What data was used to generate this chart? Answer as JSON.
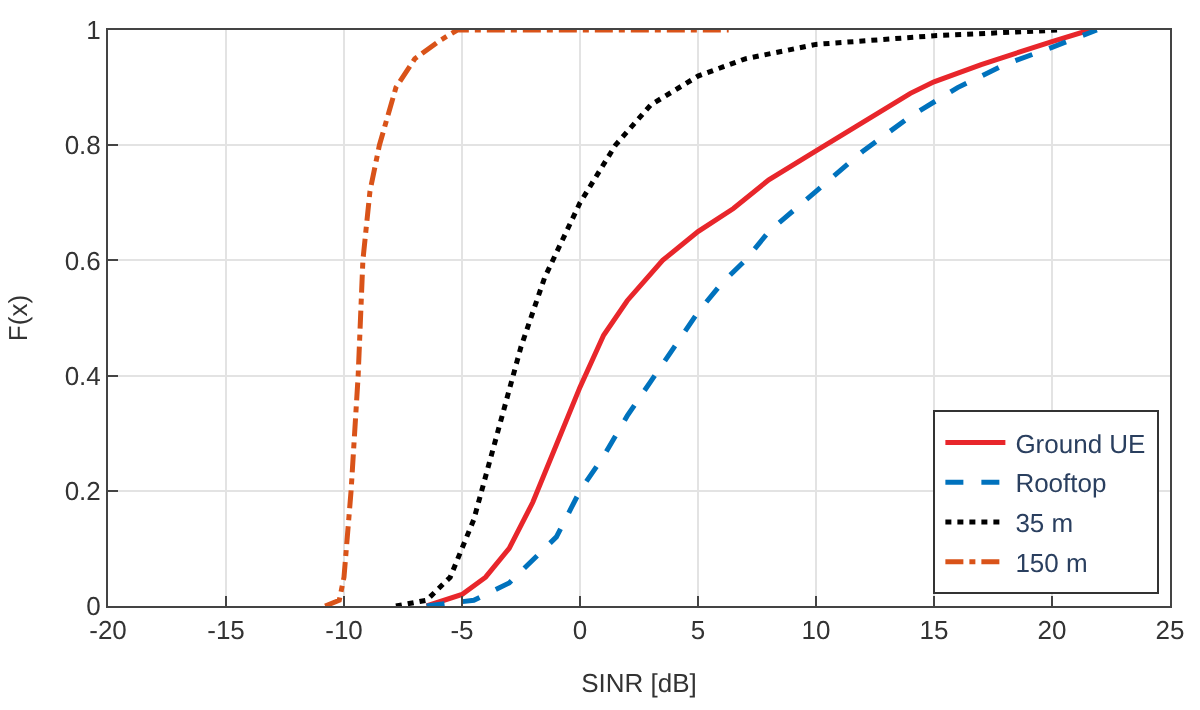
{
  "chart_data": {
    "type": "line",
    "xlabel": "SINR [dB]",
    "ylabel": "F(x)",
    "xlim": [
      -20,
      25
    ],
    "xticks": [
      -20,
      -15,
      -10,
      -5,
      0,
      5,
      10,
      15,
      20,
      25
    ],
    "ylim": [
      0,
      1
    ],
    "yticks": [
      0,
      0.2,
      0.4,
      0.6,
      0.8,
      1
    ],
    "grid": true,
    "legend": "bottom right",
    "series": [
      {
        "name": "Ground UE",
        "color": "#e8262b",
        "line_style": "solid",
        "x": [
          -6.5,
          -5,
          -4,
          -3,
          -2,
          -1,
          0,
          1,
          2,
          3.5,
          5,
          6.5,
          8,
          10,
          12,
          14,
          15,
          17,
          20,
          21.6
        ],
        "values": [
          0,
          0.02,
          0.05,
          0.1,
          0.18,
          0.28,
          0.38,
          0.47,
          0.53,
          0.6,
          0.65,
          0.69,
          0.74,
          0.79,
          0.84,
          0.89,
          0.91,
          0.94,
          0.98,
          1
        ]
      },
      {
        "name": "Rooftop",
        "color": "#0072bd",
        "line_style": "dashed",
        "x": [
          -6.5,
          -4.5,
          -3,
          -1,
          0,
          1,
          2,
          3,
          4,
          5,
          6,
          7,
          8,
          10,
          12,
          14,
          16,
          18,
          20,
          21.9
        ],
        "values": [
          0,
          0.01,
          0.04,
          0.12,
          0.2,
          0.26,
          0.33,
          0.39,
          0.45,
          0.51,
          0.56,
          0.6,
          0.65,
          0.72,
          0.79,
          0.85,
          0.9,
          0.94,
          0.97,
          1
        ]
      },
      {
        "name": "35 m",
        "color": "#000000",
        "line_style": "dotted",
        "x": [
          -7.8,
          -6.5,
          -5.5,
          -4.5,
          -3.5,
          -2.5,
          -1.5,
          0,
          1.5,
          3,
          5,
          7,
          10,
          15,
          20.3
        ],
        "values": [
          0,
          0.01,
          0.05,
          0.15,
          0.3,
          0.45,
          0.57,
          0.7,
          0.8,
          0.87,
          0.92,
          0.95,
          0.975,
          0.99,
          1
        ]
      },
      {
        "name": "150 m",
        "color": "#d95319",
        "line_style": "dashdot",
        "x": [
          -10.8,
          -10.2,
          -10,
          -9.7,
          -9.4,
          -9.2,
          -8.9,
          -8.5,
          -7.8,
          -7,
          -6,
          -5.2,
          6.3
        ],
        "values": [
          0,
          0.01,
          0.05,
          0.2,
          0.4,
          0.6,
          0.72,
          0.8,
          0.9,
          0.95,
          0.98,
          1,
          1
        ]
      }
    ]
  }
}
